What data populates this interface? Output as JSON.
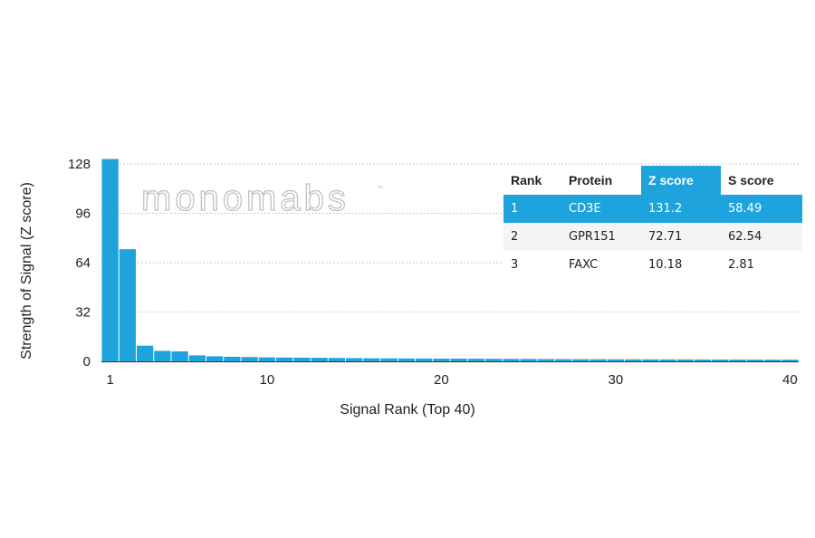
{
  "chart_data": {
    "type": "bar",
    "ylabel": "Strength of Signal (Z score)",
    "xlabel": "Signal Rank (Top 40)",
    "ylim": [
      0,
      128
    ],
    "yticks": [
      0,
      32,
      64,
      96,
      128
    ],
    "xticks": [
      1,
      10,
      20,
      30,
      40
    ],
    "grid": "horizontal dotted",
    "bar_color": "#1ea3dc",
    "ranks": [
      1,
      2,
      3,
      4,
      5,
      6,
      7,
      8,
      9,
      10,
      11,
      12,
      13,
      14,
      15,
      16,
      17,
      18,
      19,
      20,
      21,
      22,
      23,
      24,
      25,
      26,
      27,
      28,
      29,
      30,
      31,
      32,
      33,
      34,
      35,
      36,
      37,
      38,
      39,
      40
    ],
    "values": [
      131.2,
      72.71,
      10.18,
      6.8,
      6.5,
      3.9,
      3.3,
      3.0,
      2.8,
      2.6,
      2.5,
      2.4,
      2.3,
      2.2,
      2.1,
      2.0,
      1.95,
      1.9,
      1.85,
      1.8,
      1.75,
      1.7,
      1.65,
      1.6,
      1.55,
      1.5,
      1.45,
      1.4,
      1.38,
      1.35,
      1.32,
      1.3,
      1.28,
      1.25,
      1.22,
      1.2,
      1.18,
      1.15,
      1.12,
      1.1
    ]
  },
  "watermark": {
    "text": "monomabs",
    "tm": "™"
  },
  "table": {
    "headers": [
      "Rank",
      "Protein",
      "Z score",
      "S score"
    ],
    "highlight_color": "#1ea3dc",
    "rows": [
      {
        "rank": "1",
        "protein": "CD3E",
        "z": "131.2",
        "s": "58.49"
      },
      {
        "rank": "2",
        "protein": "GPR151",
        "z": "72.71",
        "s": "62.54"
      },
      {
        "rank": "3",
        "protein": "FAXC",
        "z": "10.18",
        "s": "2.81"
      }
    ]
  }
}
